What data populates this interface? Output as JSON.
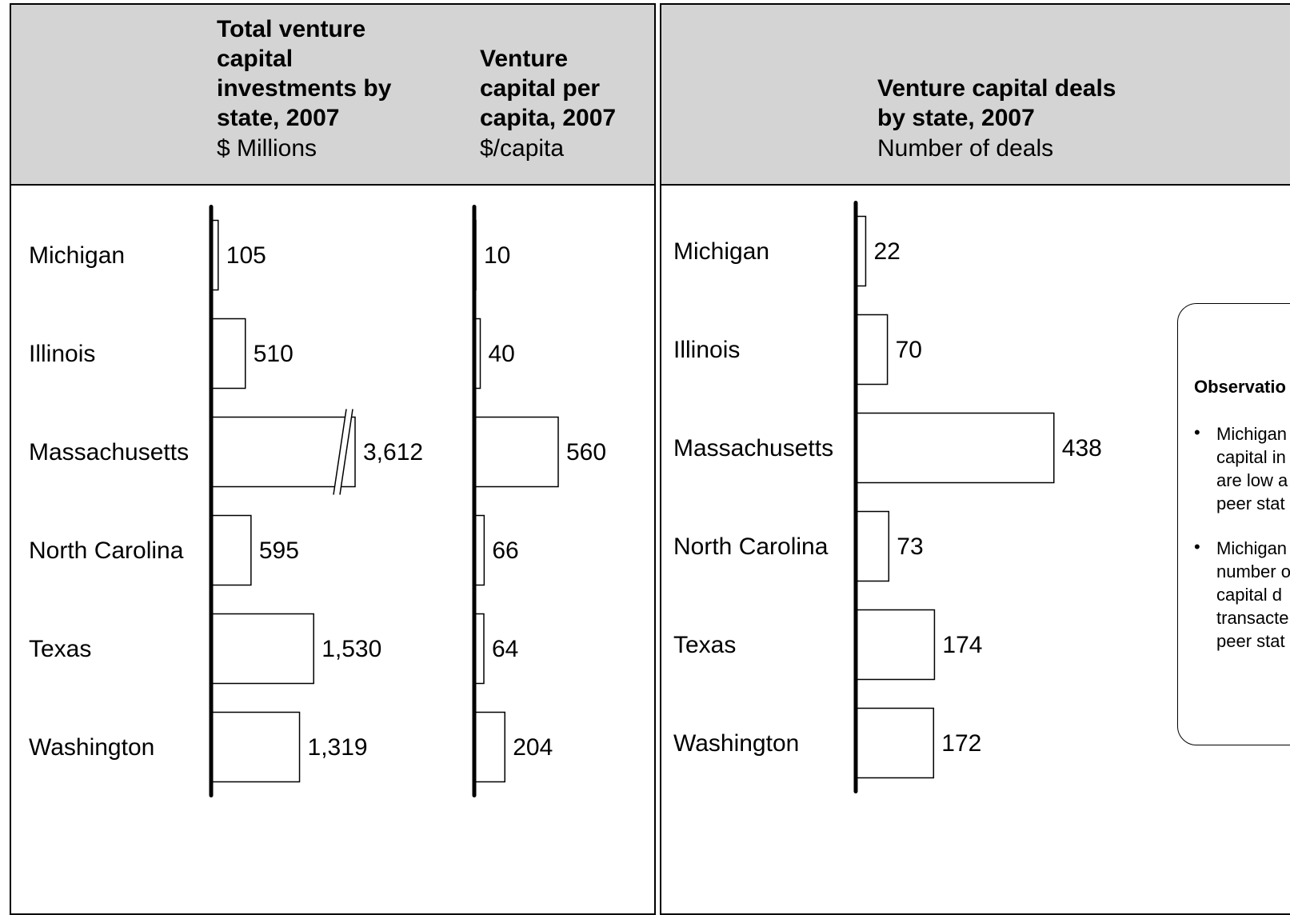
{
  "left_panel": {
    "chart1_title": "Total venture capital investments by state, 2007",
    "chart1_unit": "$ Millions",
    "chart2_title": "Venture capital per capita, 2007",
    "chart2_unit": "$/capita"
  },
  "right_panel": {
    "chart3_title": "Venture capital deals by state, 2007",
    "chart3_unit": "Number of deals",
    "observations_title": "Observatio",
    "observations": [
      "Michigan\ncapital in\nare low a\npeer stat",
      "Michigan\nnumber o\ncapital d\ntransacte\npeer stat"
    ]
  },
  "chart_data": [
    {
      "type": "bar",
      "orientation": "horizontal",
      "title": "Total venture capital investments by state, 2007",
      "unit": "$ Millions",
      "categories": [
        "Michigan",
        "Illinois",
        "Massachusetts",
        "North Carolina",
        "Texas",
        "Washington"
      ],
      "values": [
        105,
        510,
        3612,
        595,
        1530,
        1319
      ],
      "value_labels": [
        "105",
        "510",
        "3,612",
        "595",
        "1,530",
        "1,319"
      ],
      "axis_break": "Massachusetts"
    },
    {
      "type": "bar",
      "orientation": "horizontal",
      "title": "Venture capital per capita, 2007",
      "unit": "$/capita",
      "categories": [
        "Michigan",
        "Illinois",
        "Massachusetts",
        "North Carolina",
        "Texas",
        "Washington"
      ],
      "values": [
        10,
        40,
        560,
        66,
        64,
        204
      ],
      "value_labels": [
        "10",
        "40",
        "560",
        "66",
        "64",
        "204"
      ]
    },
    {
      "type": "bar",
      "orientation": "horizontal",
      "title": "Venture capital deals by state, 2007",
      "unit": "Number of deals",
      "categories": [
        "Michigan",
        "Illinois",
        "Massachusetts",
        "North Carolina",
        "Texas",
        "Washington"
      ],
      "values": [
        22,
        70,
        438,
        73,
        174,
        172
      ],
      "value_labels": [
        "22",
        "70",
        "438",
        "73",
        "174",
        "172"
      ]
    }
  ]
}
